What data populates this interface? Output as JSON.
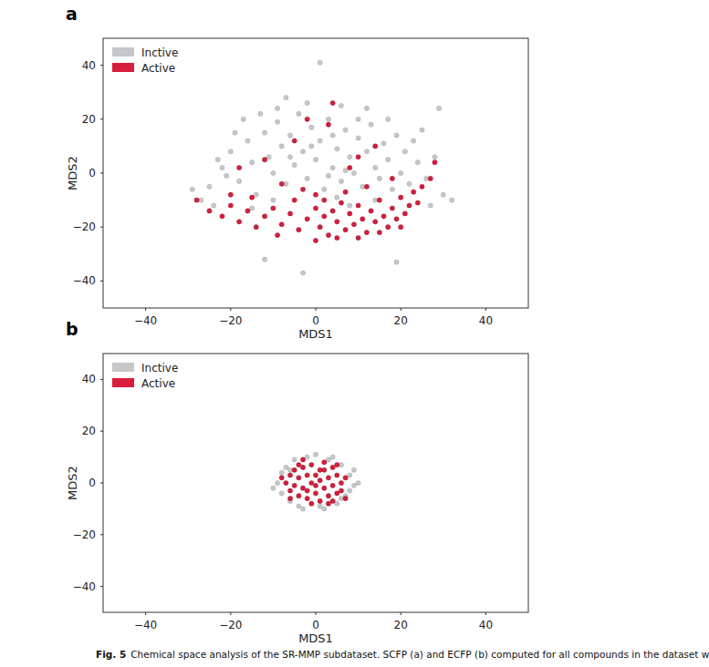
{
  "chart_data": [
    {
      "type": "scatter",
      "title": "a",
      "x_label": "MDS1",
      "y_label": "MDS2",
      "xlim": [
        -50,
        50
      ],
      "ylim": [
        -50,
        50
      ],
      "xticks": [
        {
          "value": -40,
          "label": "−40"
        },
        {
          "value": -20,
          "label": "−20"
        },
        0,
        20,
        40
      ],
      "yticks": [
        {
          "value": -40,
          "label": "−40"
        },
        {
          "value": -20,
          "label": "−20"
        },
        0,
        20,
        40
      ],
      "legend": "upper left",
      "series": [
        {
          "name": "Inctive",
          "color": "#c6c7cb",
          "marker": "circle",
          "x": [
            -25,
            -22,
            -20,
            -18,
            -16,
            -15,
            -14,
            -12,
            -11,
            -10,
            -9,
            -8,
            -7,
            -6,
            -5,
            -4,
            -3,
            -2,
            -1,
            0,
            1,
            2,
            3,
            4,
            5,
            6,
            7,
            8,
            9,
            10,
            11,
            12,
            13,
            14,
            15,
            16,
            17,
            18,
            19,
            20,
            21,
            22,
            24,
            26,
            28,
            30,
            -27,
            -24,
            -19,
            -17,
            -13,
            -9,
            -2,
            1,
            -12,
            -3,
            19,
            29,
            32,
            25,
            -21,
            -6,
            4,
            10,
            -15,
            5,
            14,
            -10,
            8,
            -1,
            7,
            -23,
            12,
            17,
            23,
            27,
            -7,
            6,
            -29,
            3
          ],
          "values": [
            -5,
            2,
            8,
            -3,
            12,
            4,
            -8,
            15,
            6,
            0,
            19,
            10,
            -4,
            14,
            3,
            22,
            8,
            -2,
            17,
            5,
            12,
            -6,
            20,
            2,
            9,
            -3,
            16,
            6,
            0,
            13,
            -5,
            8,
            18,
            2,
            -2,
            11,
            5,
            -6,
            14,
            0,
            8,
            -4,
            4,
            -2,
            6,
            -8,
            -10,
            -12,
            15,
            20,
            22,
            24,
            26,
            41,
            -32,
            -37,
            -33,
            24,
            -10,
            16,
            -1,
            6,
            14,
            20,
            -13,
            -9,
            -10,
            -10,
            -12,
            10,
            1,
            5,
            24,
            20,
            12,
            -12,
            28,
            25,
            -6,
            -1
          ]
        },
        {
          "name": "Active",
          "color": "#d81e3c",
          "marker": "circle",
          "x": [
            -28,
            -25,
            -22,
            -20,
            -18,
            -16,
            -14,
            -12,
            -10,
            -8,
            -6,
            -4,
            -2,
            0,
            1,
            2,
            3,
            4,
            5,
            6,
            7,
            8,
            9,
            10,
            11,
            12,
            13,
            14,
            15,
            16,
            17,
            18,
            19,
            20,
            21,
            22,
            23,
            24,
            25,
            27,
            28,
            -15,
            -5,
            5,
            10,
            -9,
            0,
            15,
            -12,
            -5,
            3,
            8,
            14,
            -18,
            -2,
            18,
            -8,
            10,
            4,
            12,
            0,
            -20,
            7,
            -3,
            20,
            2
          ],
          "values": [
            -10,
            -14,
            -16,
            -12,
            -18,
            -14,
            -20,
            -16,
            -13,
            -19,
            -15,
            -21,
            -17,
            -13,
            -20,
            -16,
            -23,
            -14,
            -18,
            -11,
            -21,
            -15,
            -19,
            -12,
            -17,
            -22,
            -14,
            -18,
            -10,
            -16,
            -20,
            -13,
            -17,
            -9,
            -15,
            -12,
            -7,
            -11,
            -5,
            -2,
            4,
            -9,
            -10,
            -24,
            -24,
            -23,
            -25,
            -22,
            5,
            12,
            18,
            2,
            10,
            2,
            20,
            -2,
            -4,
            6,
            26,
            -5,
            -8,
            -8,
            -7,
            -6,
            -20,
            -10
          ]
        }
      ]
    },
    {
      "type": "scatter",
      "title": "b",
      "x_label": "MDS1",
      "y_label": "MDS2",
      "xlim": [
        -50,
        50
      ],
      "ylim": [
        -50,
        50
      ],
      "xticks": [
        {
          "value": -40,
          "label": "−40"
        },
        {
          "value": -20,
          "label": "−20"
        },
        0,
        20,
        40
      ],
      "yticks": [
        {
          "value": -40,
          "label": "−40"
        },
        {
          "value": -20,
          "label": "−20"
        },
        0,
        20,
        40
      ],
      "legend": "upper left",
      "series": [
        {
          "name": "Inctive",
          "color": "#c6c7cb",
          "marker": "circle",
          "x": [
            -9,
            -8,
            -8,
            -7,
            -6,
            -5,
            -4,
            -2,
            0,
            2,
            3,
            5,
            6,
            7,
            8,
            9,
            9,
            10,
            -10,
            4,
            -3,
            1,
            6,
            -6,
            8
          ],
          "values": [
            0,
            4,
            -4,
            6,
            -7,
            9,
            -9,
            10,
            11,
            -10,
            9,
            -8,
            7,
            -5,
            3,
            -1,
            5,
            0,
            -2,
            10,
            -10,
            -9,
            -6,
            5,
            -3
          ]
        },
        {
          "name": "Active",
          "color": "#d81e3c",
          "marker": "circle",
          "x": [
            -7,
            -6,
            -6,
            -5,
            -5,
            -4,
            -4,
            -3,
            -3,
            -2,
            -2,
            -1,
            -1,
            0,
            0,
            1,
            1,
            2,
            2,
            3,
            3,
            4,
            4,
            5,
            5,
            6,
            6,
            7,
            -1,
            2,
            -4,
            5,
            -6,
            0,
            -2,
            3,
            7,
            -8,
            1,
            -3,
            4
          ],
          "values": [
            0,
            3,
            -3,
            5,
            -1,
            -5,
            2,
            6,
            -2,
            -6,
            3,
            0,
            7,
            -4,
            3,
            -7,
            1,
            5,
            -2,
            -5,
            2,
            6,
            -1,
            -4,
            3,
            0,
            -3,
            2,
            -8,
            8,
            7,
            7,
            -6,
            -1,
            -3,
            -8,
            -6,
            2,
            5,
            9,
            -7
          ]
        }
      ]
    }
  ],
  "caption": {
    "label": "Fig. 5",
    "text": "Chemical space analysis of the SR-MMP subdataset. SCFP (a) and ECFP (b) computed for all compounds in the dataset were plotted by MDS"
  }
}
